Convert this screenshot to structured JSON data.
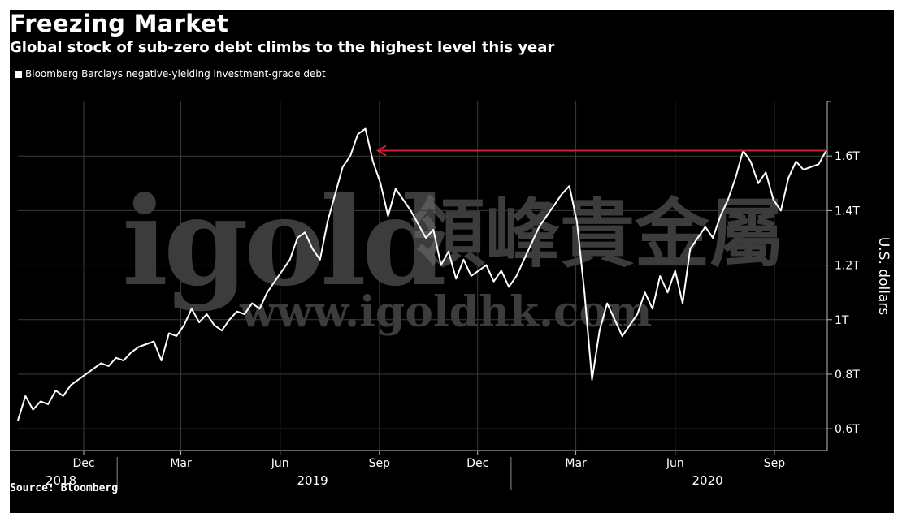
{
  "title": "Freezing Market",
  "subtitle": "Global stock of sub-zero debt climbs to the highest level this year",
  "source": "Source: Bloomberg",
  "watermark": {
    "text_logo": "igold",
    "text_chinese": "領峰貴金屬",
    "text_url": "www.igoldhk.com"
  },
  "colors": {
    "background": "#000000",
    "line": "#ffffff",
    "annotation": "#d0202a",
    "grid": "#3a3a3a"
  },
  "chart_data": {
    "type": "line",
    "title": "Freezing Market",
    "subtitle": "Global stock of sub-zero debt climbs to the highest level this year",
    "ylabel": "U.S. dollars",
    "xlabel": "",
    "ylim": [
      0.52,
      1.8
    ],
    "yticks": [
      0.6,
      0.8,
      1.0,
      1.2,
      1.4,
      1.6
    ],
    "ytick_labels": [
      "0.6T",
      "0.8T",
      "1T",
      "1.2T",
      "1.4T",
      "1.6T"
    ],
    "xlim": [
      "2018-10-01",
      "2020-10-20"
    ],
    "xticks": [
      {
        "date": "2018-12-01",
        "label": "Dec"
      },
      {
        "date": "2019-03-01",
        "label": "Mar"
      },
      {
        "date": "2019-06-01",
        "label": "Jun"
      },
      {
        "date": "2019-09-01",
        "label": "Sep"
      },
      {
        "date": "2019-12-01",
        "label": "Dec"
      },
      {
        "date": "2020-03-01",
        "label": "Mar"
      },
      {
        "date": "2020-06-01",
        "label": "Jun"
      },
      {
        "date": "2020-09-01",
        "label": "Sep"
      }
    ],
    "year_labels": [
      {
        "date": "2018-11-10",
        "label": "2018"
      },
      {
        "date": "2019-07-01",
        "label": "2019"
      },
      {
        "date": "2020-07-01",
        "label": "2020"
      }
    ],
    "year_dividers": [
      "2019-01-01",
      "2020-01-01"
    ],
    "grid": true,
    "legend_position": "top-left",
    "series": [
      {
        "name": "Bloomberg Barclays negative-yielding investment-grade debt",
        "x": [
          "2018-10-01",
          "2018-10-08",
          "2018-10-15",
          "2018-10-22",
          "2018-10-29",
          "2018-11-05",
          "2018-11-12",
          "2018-11-19",
          "2018-11-26",
          "2018-12-03",
          "2018-12-10",
          "2018-12-17",
          "2018-12-24",
          "2018-12-31",
          "2019-01-07",
          "2019-01-14",
          "2019-01-21",
          "2019-01-28",
          "2019-02-04",
          "2019-02-11",
          "2019-02-18",
          "2019-02-25",
          "2019-03-04",
          "2019-03-11",
          "2019-03-18",
          "2019-03-25",
          "2019-04-01",
          "2019-04-08",
          "2019-04-15",
          "2019-04-22",
          "2019-04-29",
          "2019-05-06",
          "2019-05-13",
          "2019-05-20",
          "2019-05-27",
          "2019-06-03",
          "2019-06-10",
          "2019-06-17",
          "2019-06-24",
          "2019-07-01",
          "2019-07-08",
          "2019-07-15",
          "2019-07-22",
          "2019-07-29",
          "2019-08-05",
          "2019-08-12",
          "2019-08-19",
          "2019-08-26",
          "2019-09-02",
          "2019-09-09",
          "2019-09-16",
          "2019-09-23",
          "2019-09-30",
          "2019-10-07",
          "2019-10-14",
          "2019-10-21",
          "2019-10-28",
          "2019-11-04",
          "2019-11-11",
          "2019-11-18",
          "2019-11-25",
          "2019-12-02",
          "2019-12-09",
          "2019-12-16",
          "2019-12-23",
          "2019-12-30",
          "2020-01-06",
          "2020-01-13",
          "2020-01-20",
          "2020-01-27",
          "2020-02-03",
          "2020-02-10",
          "2020-02-17",
          "2020-02-24",
          "2020-03-02",
          "2020-03-09",
          "2020-03-16",
          "2020-03-23",
          "2020-03-30",
          "2020-04-06",
          "2020-04-13",
          "2020-04-20",
          "2020-04-27",
          "2020-05-04",
          "2020-05-11",
          "2020-05-18",
          "2020-05-25",
          "2020-06-01",
          "2020-06-08",
          "2020-06-15",
          "2020-06-22",
          "2020-06-29",
          "2020-07-06",
          "2020-07-13",
          "2020-07-20",
          "2020-07-27",
          "2020-08-03",
          "2020-08-10",
          "2020-08-17",
          "2020-08-24",
          "2020-08-31",
          "2020-09-07",
          "2020-09-14",
          "2020-09-21",
          "2020-09-28",
          "2020-10-05",
          "2020-10-12",
          "2020-10-19"
        ],
        "values": [
          0.63,
          0.72,
          0.67,
          0.7,
          0.69,
          0.74,
          0.72,
          0.76,
          0.78,
          0.8,
          0.82,
          0.84,
          0.83,
          0.86,
          0.85,
          0.88,
          0.9,
          0.91,
          0.92,
          0.85,
          0.95,
          0.94,
          0.98,
          1.04,
          0.99,
          1.02,
          0.98,
          0.96,
          1.0,
          1.03,
          1.02,
          1.06,
          1.04,
          1.1,
          1.14,
          1.18,
          1.22,
          1.3,
          1.32,
          1.26,
          1.22,
          1.36,
          1.46,
          1.56,
          1.6,
          1.68,
          1.7,
          1.58,
          1.5,
          1.38,
          1.48,
          1.44,
          1.4,
          1.35,
          1.3,
          1.33,
          1.2,
          1.25,
          1.15,
          1.22,
          1.16,
          1.18,
          1.2,
          1.14,
          1.18,
          1.12,
          1.16,
          1.22,
          1.28,
          1.34,
          1.38,
          1.42,
          1.46,
          1.49,
          1.36,
          1.1,
          0.78,
          0.96,
          1.06,
          1.0,
          0.94,
          0.98,
          1.02,
          1.1,
          1.04,
          1.16,
          1.1,
          1.18,
          1.06,
          1.26,
          1.3,
          1.34,
          1.3,
          1.38,
          1.44,
          1.52,
          1.62,
          1.58,
          1.5,
          1.54,
          1.44,
          1.4,
          1.52,
          1.58,
          1.55,
          1.56,
          1.57,
          1.62
        ]
      }
    ],
    "annotations": [
      {
        "type": "horizontal-arrow",
        "y": 1.62,
        "x_from": "2020-10-19",
        "x_to": "2019-08-26",
        "color": "#d0202a"
      }
    ]
  }
}
